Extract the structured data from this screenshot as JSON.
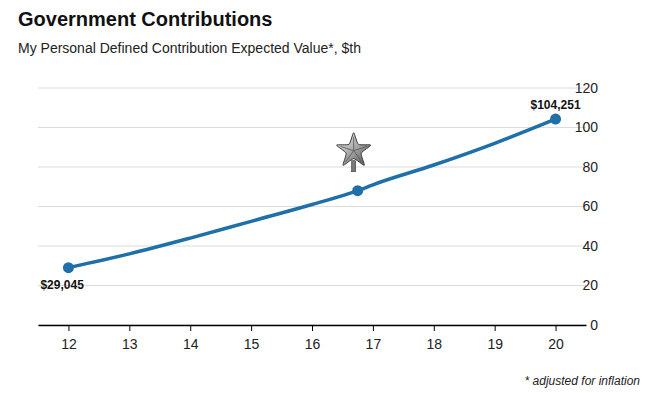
{
  "chart_data": {
    "type": "line",
    "title": "Government Contributions",
    "subtitle": "My Personal Defined Contribution Expected Value*, $th",
    "note": "* adjusted for inflation",
    "x": [
      12,
      13,
      14,
      15,
      16,
      16.75,
      17,
      18,
      19,
      20
    ],
    "xlim": [
      11.5,
      20.5
    ],
    "xticks": [
      12,
      13,
      14,
      15,
      16,
      17,
      18,
      19,
      20
    ],
    "ylim": [
      0,
      120
    ],
    "yticks": [
      0,
      20,
      40,
      60,
      80,
      100,
      120
    ],
    "grid": true,
    "series": [
      {
        "type": "line",
        "color": "#1f6fa8",
        "values": [
          29.045,
          36,
          44,
          52.5,
          61,
          68,
          71,
          81,
          92,
          104.251
        ]
      },
      {
        "type": "scatter",
        "color": "#1f6fa8",
        "marker": "circle",
        "data_labels": true,
        "values": [
          29.045,
          null,
          null,
          null,
          null,
          68,
          null,
          null,
          null,
          104.251
        ],
        "value_labels": [
          "$29,045",
          null,
          null,
          null,
          null,
          null,
          null,
          null,
          null,
          "$104,251"
        ]
      }
    ]
  }
}
